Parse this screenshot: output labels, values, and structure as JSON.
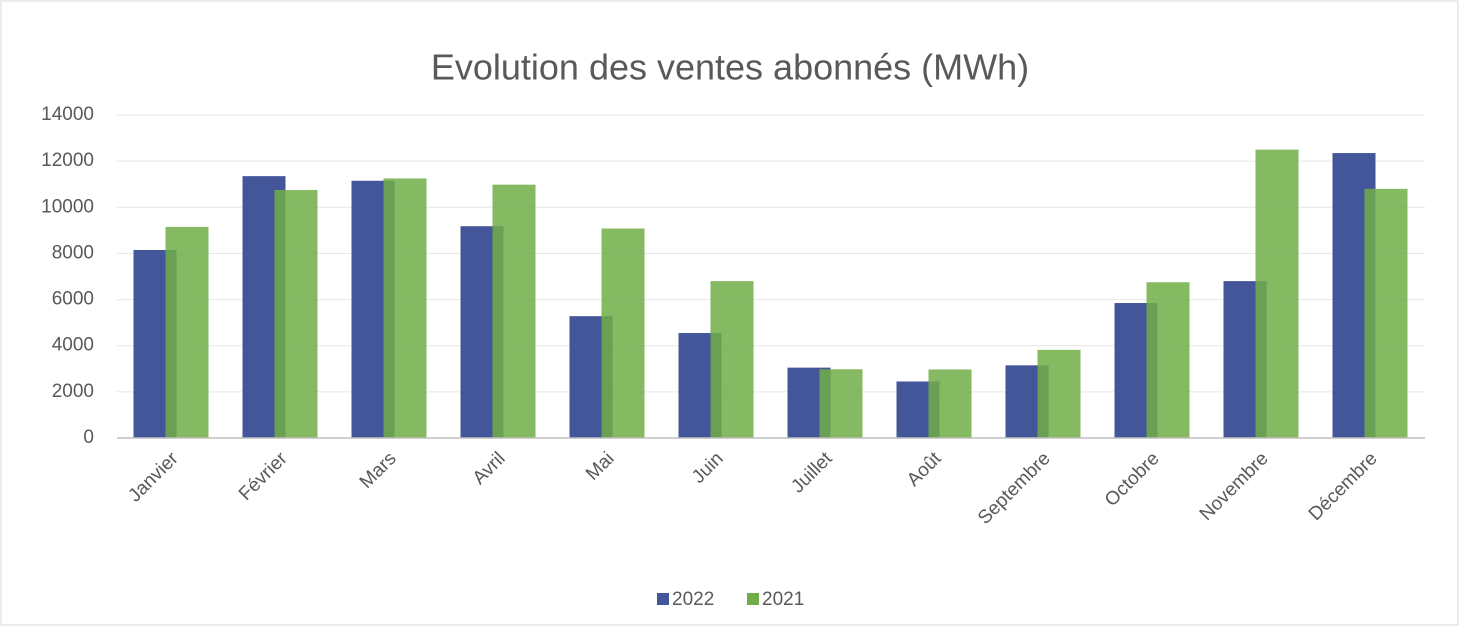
{
  "chart_data": {
    "type": "bar",
    "title": "Evolution des ventes abonnés (MWh)",
    "categories": [
      "Janvier",
      "Février",
      "Mars",
      "Avril",
      "Mai",
      "Juin",
      "Juillet",
      "Août",
      "Septembre",
      "Octobre",
      "Novembre",
      "Décembre"
    ],
    "series": [
      {
        "name": "2022",
        "color": "#44569a",
        "values": [
          8150,
          11350,
          11150,
          9180,
          5280,
          4550,
          3050,
          2450,
          3150,
          5850,
          6800,
          12350
        ]
      },
      {
        "name": "2021",
        "color": "#70ad47",
        "values": [
          9150,
          10750,
          11250,
          10980,
          9080,
          6800,
          2980,
          2970,
          3820,
          6750,
          12500,
          10800
        ]
      }
    ],
    "ylim": [
      0,
      14000
    ],
    "yticks": [
      0,
      2000,
      4000,
      6000,
      8000,
      10000,
      12000,
      14000
    ],
    "grid": true,
    "legend": "bottom"
  }
}
